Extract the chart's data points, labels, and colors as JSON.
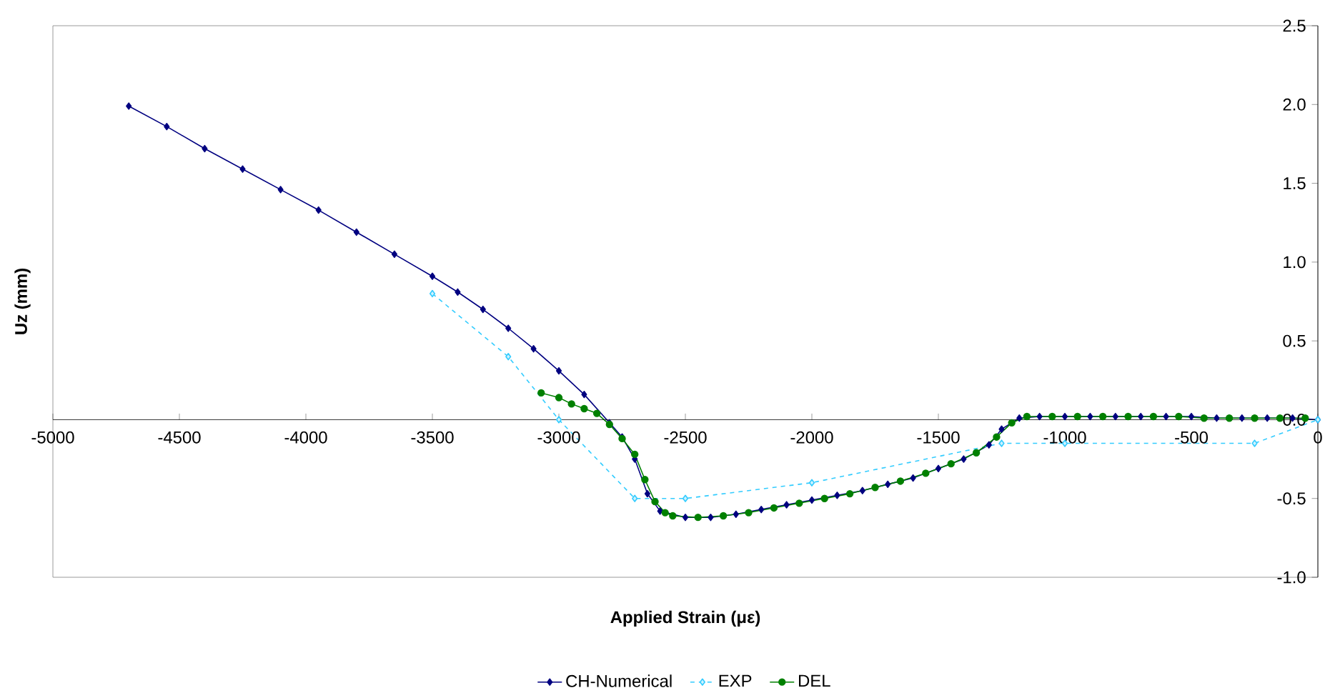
{
  "chart_data": {
    "type": "line",
    "xlabel": "Applied Strain (με)",
    "ylabel": "Uz (mm)",
    "xlim": [
      -5000,
      0
    ],
    "ylim": [
      -1.0,
      2.5
    ],
    "xticks": [
      -5000,
      -4500,
      -4000,
      -3500,
      -3000,
      -2500,
      -2000,
      -1500,
      -1000,
      -500,
      0
    ],
    "yticks": [
      {
        "value": -1.0,
        "label": "-1.0"
      },
      {
        "value": -0.5,
        "label": "-0.5"
      },
      {
        "value": 0.0,
        "label": "0.0"
      },
      {
        "value": 0.5,
        "label": "0.5"
      },
      {
        "value": 1.0,
        "label": "1.0"
      },
      {
        "value": 1.5,
        "label": "1.5"
      },
      {
        "value": 2.0,
        "label": "2.0"
      },
      {
        "value": 2.5,
        "label": "2.5"
      }
    ],
    "legend": "bottom",
    "series": [
      {
        "name": "CH-Numerical",
        "color": "#000080",
        "marker": "diamond",
        "line_style": "solid",
        "x": [
          -4700,
          -4550,
          -4400,
          -4250,
          -4100,
          -3950,
          -3800,
          -3650,
          -3500,
          -3400,
          -3300,
          -3200,
          -3100,
          -3000,
          -2900,
          -2800,
          -2750,
          -2700,
          -2650,
          -2600,
          -2500,
          -2400,
          -2300,
          -2200,
          -2100,
          -2000,
          -1900,
          -1800,
          -1700,
          -1600,
          -1500,
          -1400,
          -1300,
          -1250,
          -1180,
          -1100,
          -1000,
          -900,
          -800,
          -700,
          -600,
          -500,
          -400,
          -300,
          -200,
          -100,
          0
        ],
        "values": [
          1.99,
          1.86,
          1.72,
          1.59,
          1.46,
          1.33,
          1.19,
          1.05,
          0.91,
          0.81,
          0.7,
          0.58,
          0.45,
          0.31,
          0.16,
          -0.02,
          -0.11,
          -0.25,
          -0.47,
          -0.58,
          -0.62,
          -0.62,
          -0.6,
          -0.57,
          -0.54,
          -0.51,
          -0.48,
          -0.45,
          -0.41,
          -0.37,
          -0.31,
          -0.25,
          -0.16,
          -0.06,
          0.01,
          0.02,
          0.02,
          0.02,
          0.02,
          0.02,
          0.02,
          0.02,
          0.01,
          0.01,
          0.01,
          0.01,
          0.0
        ]
      },
      {
        "name": "EXP",
        "color": "#33ccff",
        "marker": "diamond",
        "line_style": "dashed",
        "x": [
          -3500,
          -3200,
          -3000,
          -2700,
          -2500,
          -2000,
          -1250,
          -1000,
          -250,
          0
        ],
        "values": [
          0.8,
          0.4,
          0.0,
          -0.5,
          -0.5,
          -0.4,
          -0.15,
          -0.15,
          -0.15,
          0.0
        ]
      },
      {
        "name": "DEL",
        "color": "#008000",
        "marker": "circle",
        "line_style": "solid",
        "x": [
          -3070,
          -3000,
          -2950,
          -2900,
          -2850,
          -2800,
          -2750,
          -2700,
          -2660,
          -2620,
          -2580,
          -2550,
          -2450,
          -2350,
          -2250,
          -2150,
          -2050,
          -1950,
          -1850,
          -1750,
          -1650,
          -1550,
          -1450,
          -1350,
          -1270,
          -1210,
          -1150,
          -1050,
          -950,
          -850,
          -750,
          -650,
          -550,
          -450,
          -350,
          -250,
          -150,
          -50
        ],
        "values": [
          0.17,
          0.14,
          0.1,
          0.07,
          0.04,
          -0.03,
          -0.12,
          -0.22,
          -0.38,
          -0.52,
          -0.59,
          -0.61,
          -0.62,
          -0.61,
          -0.59,
          -0.56,
          -0.53,
          -0.5,
          -0.47,
          -0.43,
          -0.39,
          -0.34,
          -0.28,
          -0.21,
          -0.11,
          -0.02,
          0.02,
          0.02,
          0.02,
          0.02,
          0.02,
          0.02,
          0.02,
          0.01,
          0.01,
          0.01,
          0.01,
          0.01
        ]
      }
    ]
  }
}
